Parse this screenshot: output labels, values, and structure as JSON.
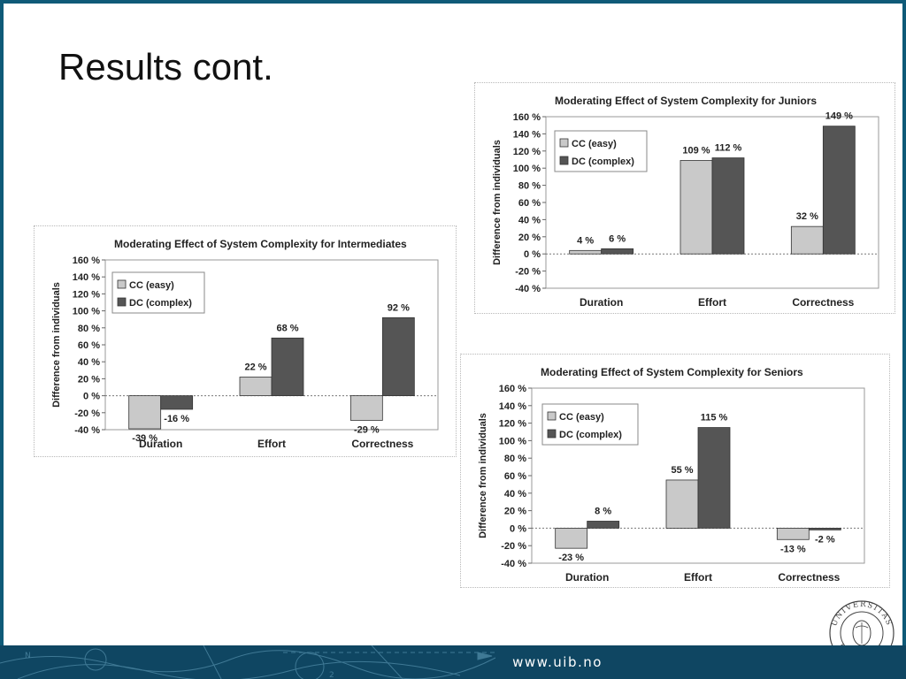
{
  "slide": {
    "title": "Results cont."
  },
  "footer": {
    "url": "www.uib.no"
  },
  "logo": {
    "icon": "university-of-bergen-seal-icon",
    "text": "UNIVERSITAS BERGENSIS"
  },
  "chart_data": [
    {
      "type": "bar",
      "title": "Moderating Effect of System Complexity for Intermediates",
      "categories": [
        "Duration",
        "Effort",
        "Correctness"
      ],
      "series": [
        {
          "name": "CC (easy)",
          "values": [
            -39,
            22,
            -29
          ],
          "labels": [
            "-39 %",
            "22 %",
            "-29 %"
          ],
          "color": "#c9c9c9"
        },
        {
          "name": "DC (complex)",
          "values": [
            -16,
            68,
            92
          ],
          "labels": [
            "-16 %",
            "68 %",
            "92 %"
          ],
          "color": "#555555"
        }
      ],
      "ylabel": "Difference from individuals",
      "ylim": [
        -40,
        160
      ],
      "yticks": [
        "160 %",
        "140 %",
        "120 %",
        "100 %",
        "80 %",
        "60 %",
        "40 %",
        "20 %",
        "0 %",
        "-20 %",
        "-40 %"
      ],
      "legend": "top-left"
    },
    {
      "type": "bar",
      "title": "Moderating Effect of System Complexity for Juniors",
      "categories": [
        "Duration",
        "Effort",
        "Correctness"
      ],
      "series": [
        {
          "name": "CC (easy)",
          "values": [
            4,
            109,
            32
          ],
          "labels": [
            "4 %",
            "109 %",
            "32 %"
          ],
          "color": "#c9c9c9"
        },
        {
          "name": "DC (complex)",
          "values": [
            6,
            112,
            149
          ],
          "labels": [
            "6 %",
            "112 %",
            "149 %"
          ],
          "color": "#555555"
        }
      ],
      "ylabel": "Difference from individuals",
      "ylim": [
        -40,
        160
      ],
      "yticks": [
        "160 %",
        "140 %",
        "120 %",
        "100 %",
        "80 %",
        "60 %",
        "40 %",
        "20 %",
        "0 %",
        "-20 %",
        "-40 %"
      ],
      "legend": "top-left"
    },
    {
      "type": "bar",
      "title": "Moderating Effect of System Complexity for Seniors",
      "categories": [
        "Duration",
        "Effort",
        "Correctness"
      ],
      "series": [
        {
          "name": "CC (easy)",
          "values": [
            -23,
            55,
            -13
          ],
          "labels": [
            "-23 %",
            "55 %",
            "-13 %"
          ],
          "color": "#c9c9c9"
        },
        {
          "name": "DC (complex)",
          "values": [
            8,
            115,
            -2
          ],
          "labels": [
            "8 %",
            "115 %",
            "-2 %"
          ],
          "color": "#555555"
        }
      ],
      "ylabel": "Difference from individuals",
      "ylim": [
        -40,
        160
      ],
      "yticks": [
        "160 %",
        "140 %",
        "120 %",
        "100 %",
        "80 %",
        "60 %",
        "40 %",
        "20 %",
        "0 %",
        "-20 %",
        "-40 %"
      ],
      "legend": "top-left"
    }
  ]
}
